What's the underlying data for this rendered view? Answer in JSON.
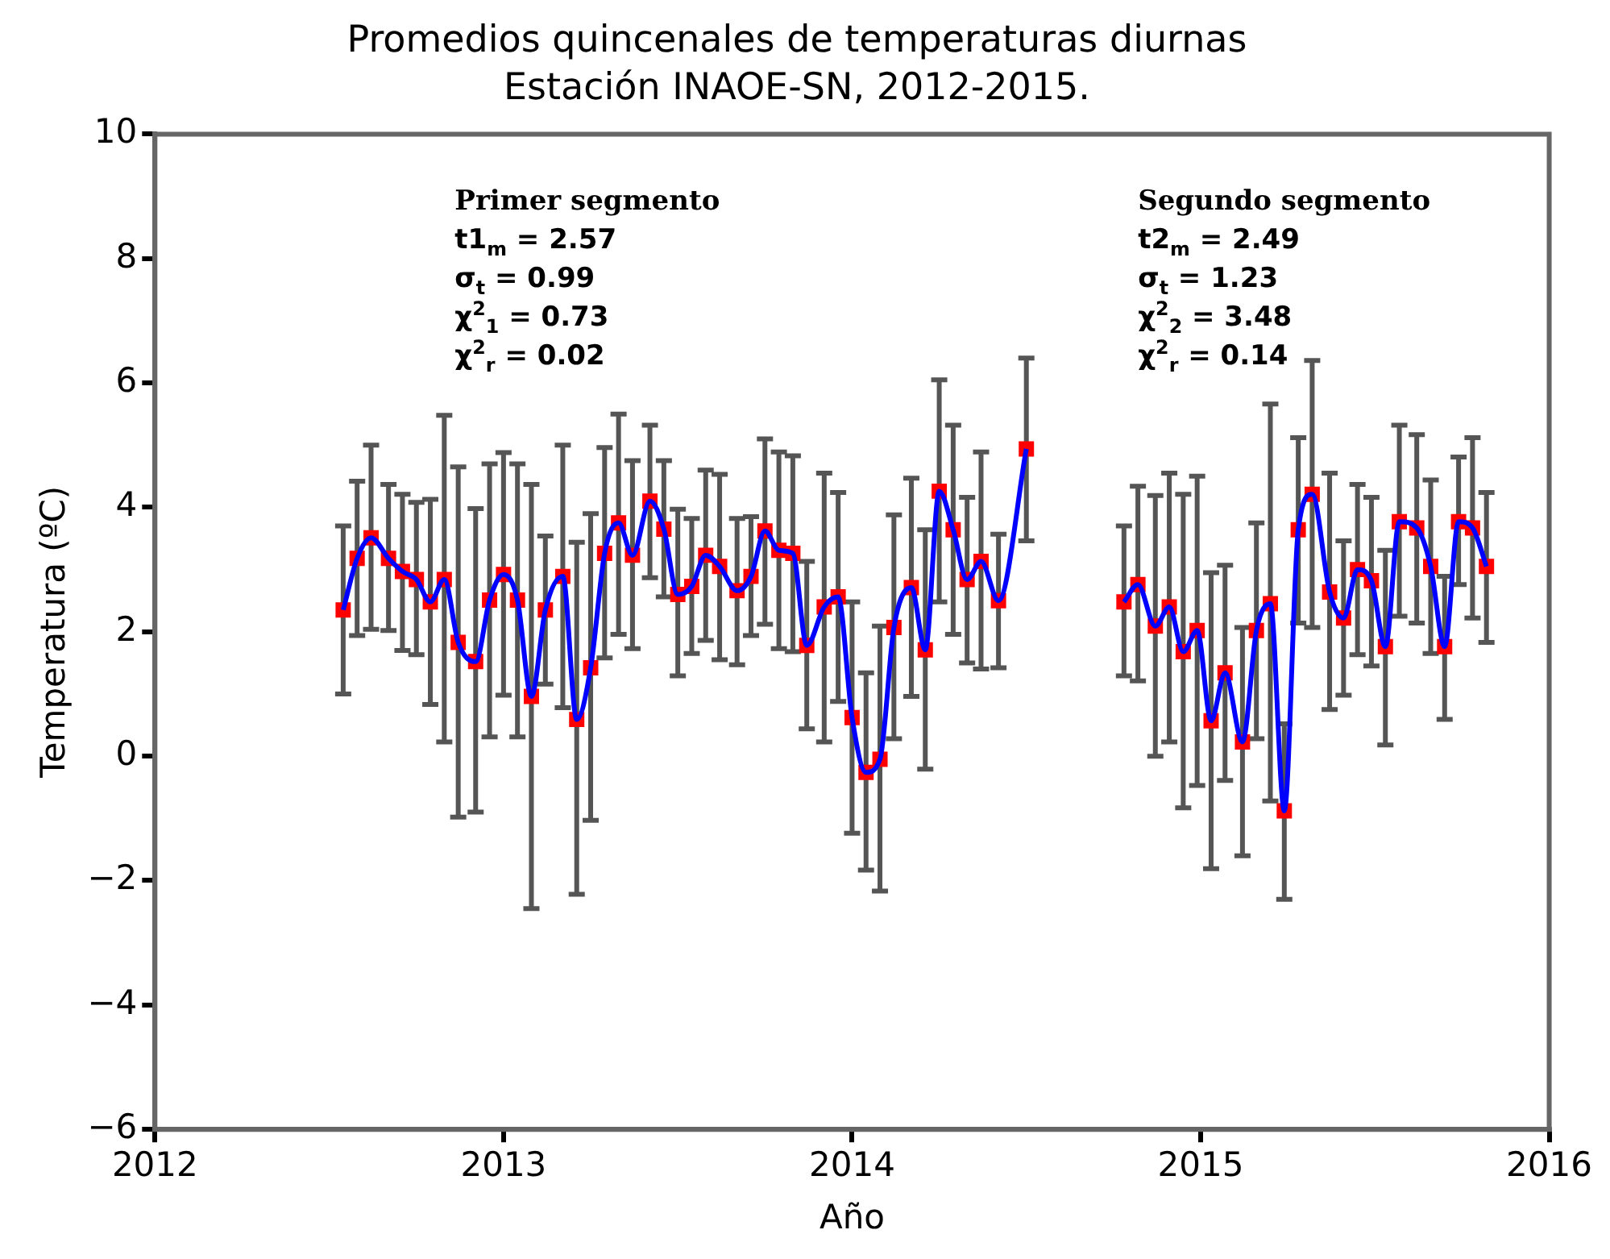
{
  "chart_data": {
    "type": "scatter",
    "title": "Promedios quincenales de temperaturas diurnas",
    "subtitle": "Estación INAOE-SN, 2012-2015.",
    "xlabel": "Año",
    "ylabel": "Temperatura (ºC)",
    "xlim": [
      2012,
      2016
    ],
    "xticks": [
      2012,
      2013,
      2014,
      2015,
      2016
    ],
    "ylim": [
      -6,
      10
    ],
    "yticks": [
      {
        "value": -6,
        "label": "−6"
      },
      {
        "value": -4,
        "label": "−4"
      },
      {
        "value": -2,
        "label": "−2"
      },
      0,
      2,
      4,
      6,
      8,
      10
    ],
    "grid": false,
    "legend": false,
    "annotations": [
      "Primer segmento",
      "t1$_{m}$ = 2.57",
      "σ$_{t}$ = 0.99",
      "χ$^{2}$$_{1}$ = 0.73",
      "χ$^{2}$$_{r}$ = 0.02",
      "Segundo segmento",
      "t2$_{m}$ = 2.49",
      "σ$_{t}$ = 1.23",
      "χ$^{2}$$_{2}$ = 3.48",
      "χ$^{2}$$_{r}$ = 0.14"
    ],
    "series": [
      {
        "type": "line",
        "color": "#0000ff",
        "x": [
          2012.54,
          2012.58,
          2012.62,
          2012.67,
          2012.71,
          2012.75,
          2012.79,
          2012.83,
          2012.87,
          2012.92,
          2012.96,
          2013.0,
          2013.04,
          2013.08,
          2013.12,
          2013.17,
          2013.21,
          2013.25,
          2013.29,
          2013.33,
          2013.37,
          2013.42,
          2013.46,
          2013.5,
          2013.54,
          2013.58,
          2013.62,
          2013.67,
          2013.71,
          2013.75,
          2013.79,
          2013.83,
          2013.87,
          2013.92,
          2013.96,
          2014.0,
          2014.04,
          2014.08,
          2014.12,
          2014.17,
          2014.21,
          2014.25,
          2014.29,
          2014.33,
          2014.37,
          2014.42,
          2014.5
        ],
        "values": [
          2.35,
          3.18,
          3.51,
          3.18,
          2.97,
          2.84,
          2.48,
          2.84,
          1.83,
          1.52,
          2.51,
          2.92,
          2.51,
          0.96,
          2.35,
          2.89,
          0.59,
          1.42,
          3.26,
          3.75,
          3.23,
          4.1,
          3.65,
          2.6,
          2.73,
          3.23,
          3.05,
          2.66,
          2.89,
          3.62,
          3.31,
          3.26,
          1.78,
          2.4,
          2.56,
          0.62,
          -0.26,
          -0.05,
          2.07,
          2.71,
          1.71,
          4.26,
          3.64,
          2.84,
          3.13,
          2.5,
          4.94
        ]
      },
      {
        "type": "scatter",
        "color": "#ff0000",
        "marker": "square",
        "x": [
          2012.54,
          2012.58,
          2012.62,
          2012.67,
          2012.71,
          2012.75,
          2012.79,
          2012.83,
          2012.87,
          2012.92,
          2012.96,
          2013.0,
          2013.04,
          2013.08,
          2013.12,
          2013.17,
          2013.21,
          2013.25,
          2013.29,
          2013.33,
          2013.37,
          2013.42,
          2013.46,
          2013.5,
          2013.54,
          2013.58,
          2013.62,
          2013.67,
          2013.71,
          2013.75,
          2013.79,
          2013.83,
          2013.87,
          2013.92,
          2013.96,
          2014.0,
          2014.04,
          2014.08,
          2014.12,
          2014.17,
          2014.21,
          2014.25,
          2014.29,
          2014.33,
          2014.37,
          2014.42,
          2014.5
        ],
        "values": [
          2.35,
          3.18,
          3.51,
          3.18,
          2.97,
          2.84,
          2.48,
          2.84,
          1.83,
          1.52,
          2.51,
          2.92,
          2.51,
          0.96,
          2.35,
          2.89,
          0.59,
          1.42,
          3.26,
          3.75,
          3.23,
          4.1,
          3.65,
          2.6,
          2.73,
          3.23,
          3.05,
          2.66,
          2.89,
          3.62,
          3.31,
          3.26,
          1.78,
          2.4,
          2.56,
          0.62,
          -0.26,
          -0.05,
          2.07,
          2.71,
          1.71,
          4.26,
          3.64,
          2.84,
          3.13,
          2.5,
          4.94
        ],
        "errors": [
          [
            1.0,
            3.7
          ],
          [
            1.94,
            4.42
          ],
          [
            2.04,
            5.0
          ],
          [
            2.02,
            4.37
          ],
          [
            1.7,
            4.21
          ],
          [
            1.63,
            4.08
          ],
          [
            0.83,
            4.13
          ],
          [
            0.23,
            5.48
          ],
          [
            -0.98,
            4.65
          ],
          [
            -0.9,
            3.98
          ],
          [
            0.31,
            4.7
          ],
          [
            0.98,
            4.88
          ],
          [
            0.31,
            4.7
          ],
          [
            -2.45,
            4.37
          ],
          [
            1.16,
            3.54
          ],
          [
            0.78,
            5.0
          ],
          [
            -2.22,
            3.44
          ],
          [
            -1.03,
            3.9
          ],
          [
            1.58,
            4.96
          ],
          [
            1.96,
            5.5
          ],
          [
            1.73,
            4.75
          ],
          [
            2.87,
            5.32
          ],
          [
            2.56,
            4.75
          ],
          [
            1.29,
            3.97
          ],
          [
            1.65,
            3.82
          ],
          [
            1.86,
            4.6
          ],
          [
            1.55,
            4.53
          ],
          [
            1.47,
            3.82
          ],
          [
            1.94,
            3.85
          ],
          [
            2.12,
            5.1
          ],
          [
            1.73,
            4.89
          ],
          [
            1.68,
            4.83
          ],
          [
            0.44,
            3.13
          ],
          [
            0.23,
            4.55
          ],
          [
            0.88,
            4.24
          ],
          [
            -1.24,
            2.48
          ],
          [
            -1.83,
            1.34
          ],
          [
            -2.17,
            2.09
          ],
          [
            0.28,
            3.88
          ],
          [
            0.96,
            4.47
          ],
          [
            -0.21,
            3.64
          ],
          [
            2.48,
            6.05
          ],
          [
            1.96,
            5.32
          ],
          [
            1.5,
            4.16
          ],
          [
            1.4,
            4.89
          ],
          [
            1.42,
            3.57
          ],
          [
            3.46,
            6.4
          ]
        ]
      },
      {
        "type": "line",
        "color": "#0000ff",
        "x": [
          2014.78,
          2014.82,
          2014.87,
          2014.91,
          2014.95,
          2014.99,
          2015.03,
          2015.07,
          2015.12,
          2015.16,
          2015.2,
          2015.24,
          2015.28,
          2015.32,
          2015.37,
          2015.41,
          2015.45,
          2015.49,
          2015.53,
          2015.57,
          2015.62,
          2015.66,
          2015.7,
          2015.74,
          2015.78,
          2015.82
        ],
        "values": [
          2.48,
          2.76,
          2.09,
          2.4,
          1.68,
          2.02,
          0.57,
          1.34,
          0.23,
          2.02,
          2.45,
          -0.88,
          3.64,
          4.21,
          2.64,
          2.22,
          3.0,
          2.82,
          1.76,
          3.77,
          3.67,
          3.05,
          1.76,
          3.77,
          3.67,
          3.05
        ]
      },
      {
        "type": "scatter",
        "color": "#ff0000",
        "marker": "square",
        "x": [
          2014.78,
          2014.82,
          2014.87,
          2014.91,
          2014.95,
          2014.99,
          2015.03,
          2015.07,
          2015.12,
          2015.16,
          2015.2,
          2015.24,
          2015.28,
          2015.32,
          2015.37,
          2015.41,
          2015.45,
          2015.49,
          2015.53,
          2015.57,
          2015.62,
          2015.66,
          2015.7,
          2015.74,
          2015.78,
          2015.82
        ],
        "values": [
          2.48,
          2.76,
          2.09,
          2.4,
          1.68,
          2.02,
          0.57,
          1.34,
          0.23,
          2.02,
          2.45,
          -0.88,
          3.64,
          4.21,
          2.64,
          2.22,
          3.0,
          2.82,
          1.76,
          3.77,
          3.67,
          3.05,
          1.76,
          3.77,
          3.67,
          3.05
        ],
        "errors": [
          [
            1.29,
            3.7
          ],
          [
            1.21,
            4.34
          ],
          [
            0.0,
            4.19
          ],
          [
            0.23,
            4.55
          ],
          [
            -0.83,
            4.21
          ],
          [
            -0.47,
            4.5
          ],
          [
            -1.81,
            2.95
          ],
          [
            -0.39,
            3.07
          ],
          [
            -1.6,
            2.07
          ],
          [
            0.28,
            3.75
          ],
          [
            -0.72,
            5.66
          ],
          [
            -2.3,
            0.52
          ],
          [
            2.14,
            5.12
          ],
          [
            2.07,
            6.36
          ],
          [
            0.75,
            4.55
          ],
          [
            0.98,
            3.46
          ],
          [
            1.63,
            4.37
          ],
          [
            1.45,
            4.16
          ],
          [
            0.18,
            3.31
          ],
          [
            2.25,
            5.32
          ],
          [
            2.14,
            5.17
          ],
          [
            1.65,
            4.44
          ],
          [
            0.59,
            2.89
          ],
          [
            2.76,
            4.81
          ],
          [
            2.22,
            5.12
          ],
          [
            1.83,
            4.24
          ]
        ]
      }
    ]
  }
}
